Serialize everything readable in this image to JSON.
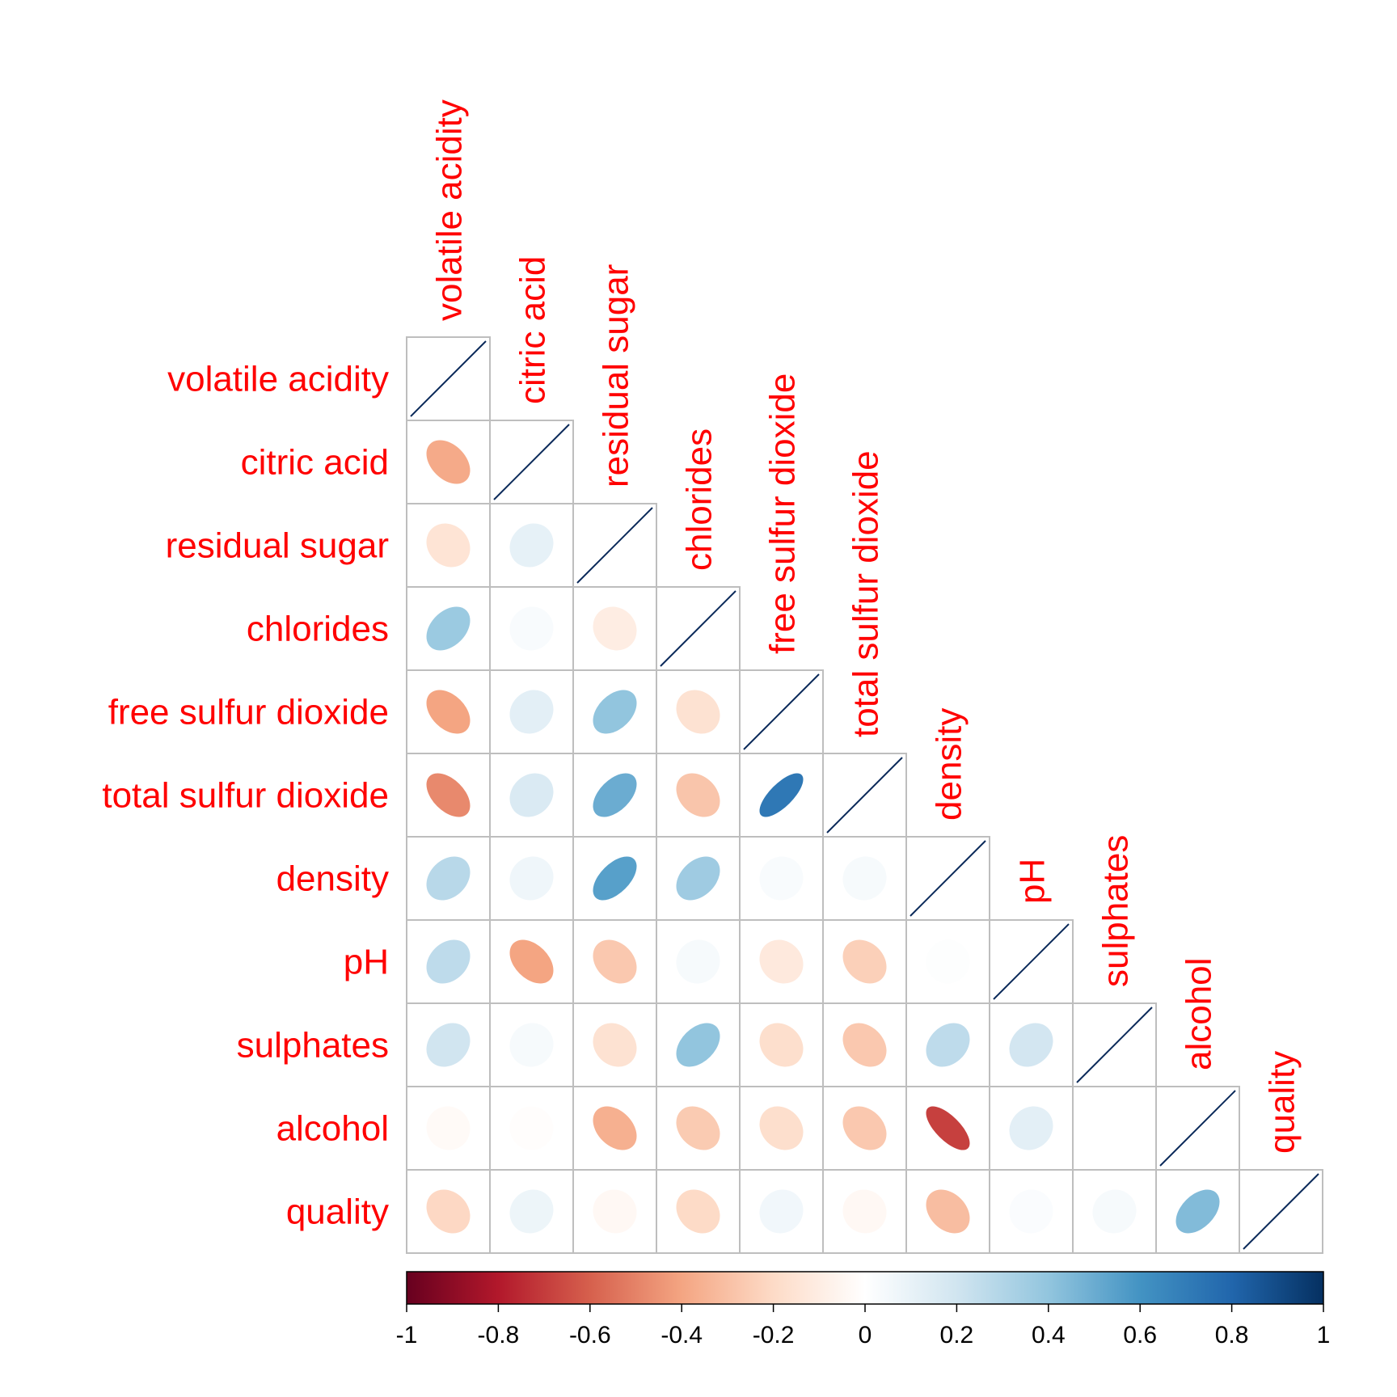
{
  "chart_data": {
    "type": "heatmap",
    "subtype": "correlation-ellipse-lower",
    "variables": [
      "volatile acidity",
      "citric acid",
      "residual sugar",
      "chlorides",
      "free sulfur dioxide",
      "total sulfur dioxide",
      "density",
      "pH",
      "sulphates",
      "alcohol",
      "quality"
    ],
    "matrix": [
      [
        1.0,
        -0.38,
        -0.15,
        0.37,
        -0.4,
        -0.48,
        0.28,
        0.26,
        0.2,
        -0.03,
        -0.21
      ],
      [
        -0.38,
        1.0,
        0.11,
        0.03,
        0.12,
        0.16,
        0.07,
        -0.4,
        0.04,
        -0.01,
        0.08
      ],
      [
        -0.15,
        0.11,
        1.0,
        -0.1,
        0.4,
        0.5,
        0.55,
        -0.27,
        -0.16,
        -0.36,
        -0.04
      ],
      [
        0.37,
        0.03,
        -0.1,
        1.0,
        -0.16,
        -0.28,
        0.36,
        0.04,
        0.4,
        -0.26,
        -0.2
      ],
      [
        -0.4,
        0.12,
        0.4,
        -0.16,
        1.0,
        0.72,
        0.03,
        -0.12,
        -0.18,
        -0.18,
        0.06
      ],
      [
        -0.48,
        0.16,
        0.5,
        -0.28,
        0.72,
        1.0,
        0.04,
        -0.24,
        -0.27,
        -0.27,
        -0.04
      ],
      [
        0.28,
        0.07,
        0.55,
        0.36,
        0.03,
        0.04,
        1.0,
        0.01,
        0.26,
        -0.69,
        -0.31
      ],
      [
        0.26,
        -0.4,
        -0.27,
        0.04,
        -0.12,
        -0.24,
        0.01,
        1.0,
        0.19,
        0.12,
        0.02
      ],
      [
        0.2,
        0.04,
        -0.16,
        0.4,
        -0.18,
        -0.27,
        0.26,
        0.19,
        1.0,
        -0.0,
        0.04
      ],
      [
        -0.03,
        -0.01,
        -0.36,
        -0.26,
        -0.18,
        -0.27,
        -0.69,
        0.12,
        -0.0,
        1.0,
        0.44
      ],
      [
        -0.21,
        0.08,
        -0.04,
        -0.2,
        0.06,
        -0.04,
        -0.31,
        0.02,
        0.04,
        0.44,
        1.0
      ]
    ],
    "colorbar": {
      "range": [
        -1,
        1
      ],
      "ticks": [
        "-1",
        "-0.8",
        "-0.6",
        "-0.4",
        "-0.2",
        "0",
        "0.2",
        "0.4",
        "0.6",
        "0.8",
        "1"
      ]
    },
    "colors": {
      "scale": [
        "#67001F",
        "#B2182B",
        "#D6604D",
        "#F4A582",
        "#FDDBC7",
        "#FFFFFF",
        "#D1E5F0",
        "#92C5DE",
        "#4393C3",
        "#2166AC",
        "#053061"
      ],
      "label": "#ff0000",
      "grid": "#bebebe",
      "diagonal": "#0b2a5a"
    }
  }
}
